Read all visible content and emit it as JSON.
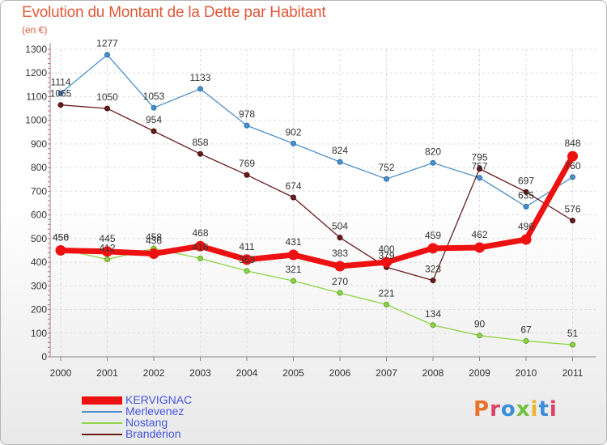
{
  "chart_data": {
    "type": "line",
    "title": "Evolution du Montant de la Dette par Habitant",
    "subtitle": "(en €)",
    "xlabel": "",
    "ylabel": "",
    "ylim": [
      0,
      1300
    ],
    "yticks": [
      0,
      100,
      200,
      300,
      400,
      500,
      600,
      700,
      800,
      900,
      1000,
      1100,
      1200,
      1300
    ],
    "x": [
      "2000",
      "2001",
      "2002",
      "2003",
      "2004",
      "2005",
      "2006",
      "2007",
      "2008",
      "2009",
      "2010",
      "2011"
    ],
    "grid": true,
    "legend_position": "bottom-left",
    "series": [
      {
        "name": "Merlevenez",
        "color": "#4b90c9",
        "values": [
          1114,
          1277,
          1053,
          1133,
          978,
          902,
          824,
          752,
          820,
          757,
          635,
          760
        ]
      },
      {
        "name": "Brandérion",
        "color": "#6b1b1b",
        "values": [
          1065,
          1050,
          954,
          858,
          769,
          674,
          504,
          379,
          323,
          795,
          697,
          576
        ]
      },
      {
        "name": "Nostang",
        "color": "#8fd444",
        "values": [
          456,
          412,
          458,
          416,
          363,
          321,
          270,
          221,
          134,
          90,
          67,
          51
        ]
      },
      {
        "name": "KERVIGNAC",
        "color": "#ee1111",
        "values": [
          450,
          445,
          436,
          468,
          411,
          431,
          383,
          400,
          459,
          462,
          496,
          848
        ]
      }
    ],
    "data_labels": [
      {
        "series": "Merlevenez",
        "labels": [
          "1114",
          "1277",
          "1053",
          "1133",
          "978",
          "902",
          "824",
          "752",
          "820",
          "757",
          "635",
          "760"
        ]
      },
      {
        "series": "Brandérion",
        "labels": [
          "1065",
          "1050",
          "954",
          "858",
          "769",
          "674",
          "504",
          "379",
          "323",
          "795",
          "697",
          "576"
        ]
      },
      {
        "series": "Nostang",
        "labels": [
          "456",
          "412",
          "458",
          "416",
          "363",
          "321",
          "270",
          "221",
          "134",
          "90",
          "67",
          "51"
        ]
      },
      {
        "series": "KERVIGNAC",
        "labels": [
          "450",
          "445",
          "436",
          "468",
          "411",
          "431",
          "383",
          "400",
          "459",
          "462",
          "496",
          "848"
        ]
      }
    ]
  },
  "legend": {
    "items": [
      {
        "label": "KERVIGNAC",
        "color": "#ee1111"
      },
      {
        "label": "Merlevenez",
        "color": "#4b90c9"
      },
      {
        "label": "Nostang",
        "color": "#8fd444"
      },
      {
        "label": "Brandérion",
        "color": "#6b1b1b"
      }
    ],
    "text_color": "#4455dd"
  },
  "logo": {
    "text": "Proxiti",
    "letter_colors": [
      "#e8732a",
      "#d9436a",
      "#3a8fd8",
      "#6fc23a",
      "#e8b62a",
      "#3a8fd8",
      "#d9436a"
    ]
  }
}
